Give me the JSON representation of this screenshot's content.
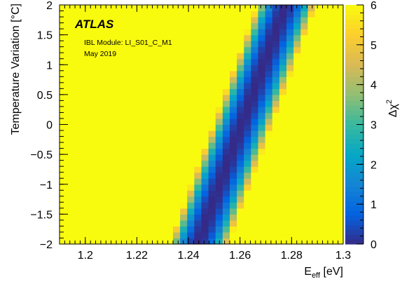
{
  "chart_data": {
    "type": "heatmap",
    "experiment_label": "ATLAS",
    "annotations": [
      "IBL Module: LI_S01_C_M1",
      "May 2019"
    ],
    "xlabel": {
      "main": "E",
      "sub": "eff",
      "unit": " [eV]"
    },
    "ylabel": "Temperature Variation [°C]",
    "colorbar_label": {
      "main": "Δχ",
      "sup": "2"
    },
    "xlim": [
      1.19,
      1.3
    ],
    "ylim": [
      -2,
      2
    ],
    "zlim": [
      0,
      6
    ],
    "x_ticks": [
      "1.2",
      "1.22",
      "1.24",
      "1.26",
      "1.28",
      "1.3"
    ],
    "x_tick_values": [
      1.2,
      1.22,
      1.24,
      1.26,
      1.28,
      1.3
    ],
    "y_ticks": [
      "−2",
      "−1.5",
      "−1",
      "−0.5",
      "0",
      "0.5",
      "1",
      "1.5",
      "2"
    ],
    "y_tick_values": [
      -2,
      -1.5,
      -1,
      -0.5,
      0,
      0.5,
      1,
      1.5,
      2
    ],
    "z_ticks": [
      "0",
      "1",
      "2",
      "3",
      "4",
      "5",
      "6"
    ],
    "z_tick_values": [
      0,
      1,
      2,
      3,
      4,
      5,
      6
    ],
    "grid": {
      "x_bins": 40,
      "y_bins": 40
    },
    "valley": {
      "description": "minimum of Δχ² along diagonal band",
      "points": [
        {
          "y": -2.0,
          "x_min": 1.2435
        },
        {
          "y": 2.0,
          "x_min": 1.2775
        }
      ],
      "value_at_minimum": 0,
      "saturation_value": 6
    },
    "colorscale": [
      "#352a87",
      "#0363e1",
      "#1485d4",
      "#06a7c6",
      "#38b99e",
      "#92bf73",
      "#d9ba56",
      "#fcce2e",
      "#f9fb0e"
    ]
  }
}
